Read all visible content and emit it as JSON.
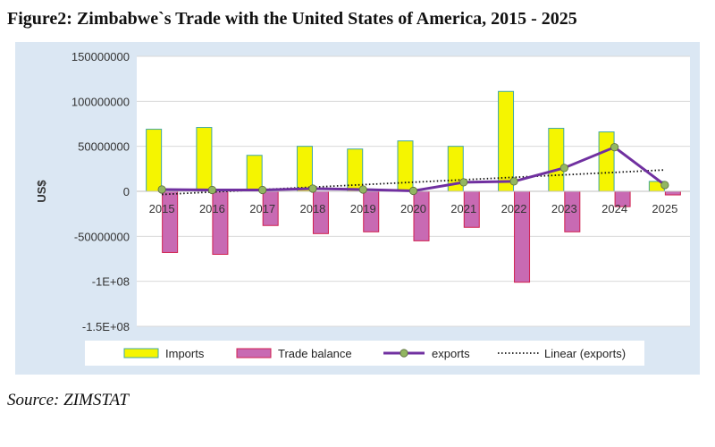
{
  "figure": {
    "title": "Figure2: Zimbabwe`s Trade with the United States of America, 2015 - 2025",
    "source": "Source: ZIMSTAT"
  },
  "colors": {
    "imports": "#f5f500",
    "imports_border": "#3fa7a7",
    "trade_balance": "#c86ab3",
    "trade_balance_border": "#d02050",
    "exports": "#7030a0",
    "exports_marker": "#92b661",
    "trend": "#111111",
    "frame_bg": "#dbe7f3",
    "plot_bg": "#ffffff",
    "grid": "#d9d9d9"
  },
  "chart_data": {
    "type": "bar",
    "title": "",
    "xlabel": "",
    "ylabel": "US$",
    "ylim": [
      -150000000,
      150000000
    ],
    "yticks": [
      150000000,
      100000000,
      50000000,
      0,
      -50000000,
      -100000000,
      -150000000
    ],
    "ytick_labels": [
      "150000000",
      "100000000",
      "50000000",
      "0",
      "-50000000",
      "-1E+08",
      "-1.5E+08"
    ],
    "categories": [
      "2015",
      "2016",
      "2017",
      "2018",
      "2019",
      "2020",
      "2021",
      "2022",
      "2023",
      "2024",
      "2025"
    ],
    "grid": true,
    "legend_position": "bottom",
    "series": [
      {
        "name": "Imports",
        "kind": "bar",
        "values": [
          69000000,
          71000000,
          40000000,
          50000000,
          47000000,
          56000000,
          50000000,
          111000000,
          70000000,
          66000000,
          11000000
        ]
      },
      {
        "name": "Trade balance",
        "kind": "bar",
        "values": [
          -68000000,
          -70000000,
          -38000000,
          -47000000,
          -45000000,
          -55000000,
          -40000000,
          -101000000,
          -45000000,
          -17000000,
          -4000000
        ]
      },
      {
        "name": "exports",
        "kind": "line",
        "values": [
          2000000,
          1500000,
          1500000,
          3000000,
          2000000,
          500000,
          10000000,
          11000000,
          26000000,
          49000000,
          7000000
        ]
      },
      {
        "name": "Linear (exports)",
        "kind": "trendline",
        "values": [
          -3500000,
          -775000,
          1950000,
          4675000,
          7400000,
          10125000,
          12850000,
          15575000,
          18300000,
          21025000,
          23750000
        ]
      }
    ]
  }
}
